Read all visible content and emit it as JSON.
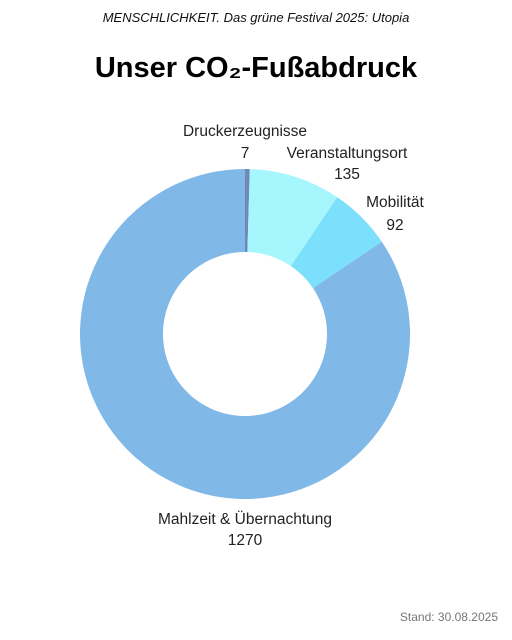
{
  "header": {
    "subtitle": "MENSCHLICHKEIT. Das grüne Festival 2025: Utopia",
    "title": "Unser CO₂-Fußabdruck"
  },
  "footer": {
    "stand": "Stand: 30.08.2025"
  },
  "chart_data": {
    "type": "pie",
    "variant": "donut",
    "title": "Unser CO₂-Fußabdruck",
    "categories": [
      "Druckerzeugnisse",
      "Veranstaltungsort",
      "Mobilität",
      "Mahlzeit & Übernachtung"
    ],
    "values": [
      7,
      135,
      92,
      1270
    ],
    "colors": [
      "#6f88b8",
      "#a6f6fd",
      "#7cdffb",
      "#80b8e8"
    ],
    "start_angle_deg": 0,
    "direction": "clockwise",
    "legend": "none",
    "data_labels": true
  }
}
